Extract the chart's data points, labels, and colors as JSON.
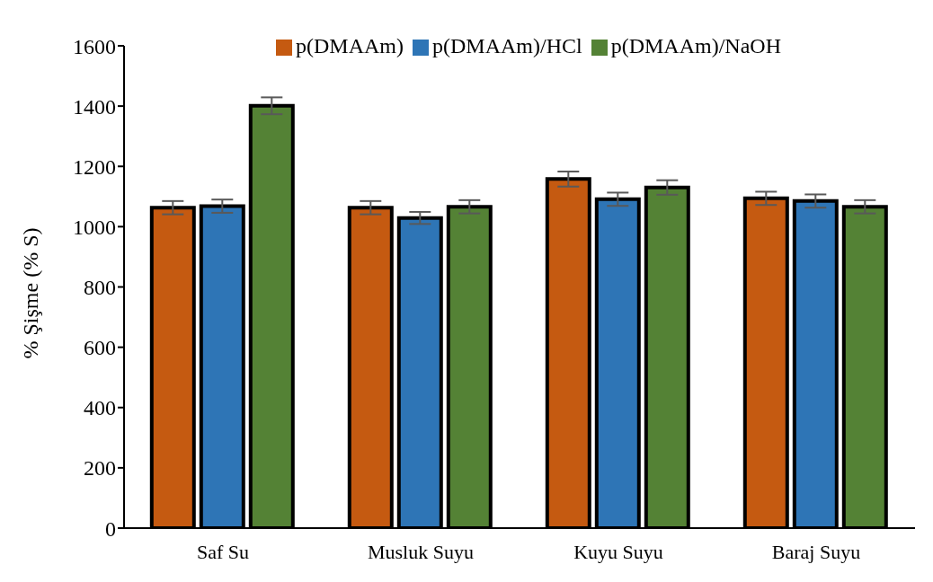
{
  "chart_data": {
    "type": "bar",
    "ylabel": "% Şişme (% S)",
    "categories": [
      "Saf Su",
      "Musluk Suyu",
      "Kuyu Suyu",
      "Baraj Suyu"
    ],
    "series": [
      {
        "name": "p(DMAAm)",
        "color": "#c55a11",
        "values": [
          1063,
          1063,
          1158,
          1094
        ],
        "errors": [
          22,
          22,
          25,
          22
        ]
      },
      {
        "name": "p(DMAAm)/HCl",
        "color": "#2e75b6",
        "values": [
          1068,
          1029,
          1091,
          1085
        ],
        "errors": [
          22,
          20,
          22,
          22
        ]
      },
      {
        "name": "p(DMAAm)/NaOH",
        "color": "#548235",
        "values": [
          1401,
          1066,
          1130,
          1066
        ],
        "errors": [
          28,
          22,
          24,
          22
        ]
      }
    ],
    "ylim": [
      0,
      1600
    ],
    "yticks": [
      0,
      200,
      400,
      600,
      800,
      1000,
      1200,
      1400,
      1600
    ],
    "grid": false,
    "legend": "top"
  }
}
